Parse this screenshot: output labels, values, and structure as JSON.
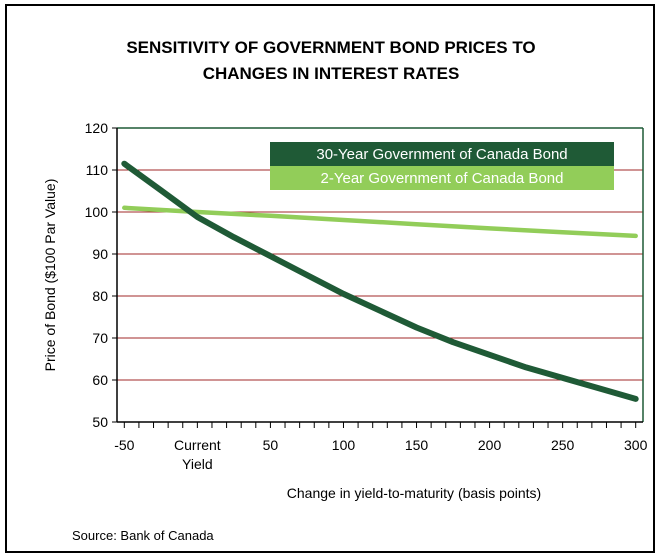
{
  "chart_data": {
    "type": "line",
    "title": [
      "SENSITIVITY OF GOVERNMENT BOND PRICES TO",
      "CHANGES IN INTEREST RATES"
    ],
    "xlabel": "Change in yield-to-maturity (basis points)",
    "ylabel": "Price of Bond ($100 Par Value)",
    "xlim": [
      -55,
      305
    ],
    "ylim": [
      50,
      120
    ],
    "y_ticks": [
      50,
      60,
      70,
      80,
      90,
      100,
      110,
      120
    ],
    "x_tick_labels": [
      {
        "x": -50,
        "lines": [
          "-50"
        ]
      },
      {
        "x": 0,
        "lines": [
          "Current",
          "Yield"
        ]
      },
      {
        "x": 50,
        "lines": [
          "50"
        ]
      },
      {
        "x": 100,
        "lines": [
          "100"
        ]
      },
      {
        "x": 150,
        "lines": [
          "150"
        ]
      },
      {
        "x": 200,
        "lines": [
          "200"
        ]
      },
      {
        "x": 250,
        "lines": [
          "250"
        ]
      },
      {
        "x": 300,
        "lines": [
          "300"
        ]
      }
    ],
    "grid": "horizontal",
    "legend_position": "top-right",
    "series": [
      {
        "name": "30-Year Government of Canada Bond",
        "color": "#1f5a36",
        "x": [
          -50,
          -25,
          0,
          25,
          50,
          75,
          100,
          125,
          150,
          175,
          200,
          225,
          250,
          275,
          300
        ],
        "values": [
          111.5,
          105.2,
          98.8,
          94.0,
          89.5,
          85.0,
          80.5,
          76.5,
          72.5,
          69.0,
          66.0,
          63.0,
          60.5,
          58.0,
          55.5
        ]
      },
      {
        "name": "2-Year Government of Canada Bond",
        "color": "#92cd59",
        "x": [
          -50,
          0,
          50,
          100,
          150,
          200,
          250,
          300
        ],
        "values": [
          101.0,
          100.0,
          99.1,
          98.1,
          97.1,
          96.1,
          95.2,
          94.3
        ]
      }
    ]
  },
  "source": "Source: Bank of Canada"
}
